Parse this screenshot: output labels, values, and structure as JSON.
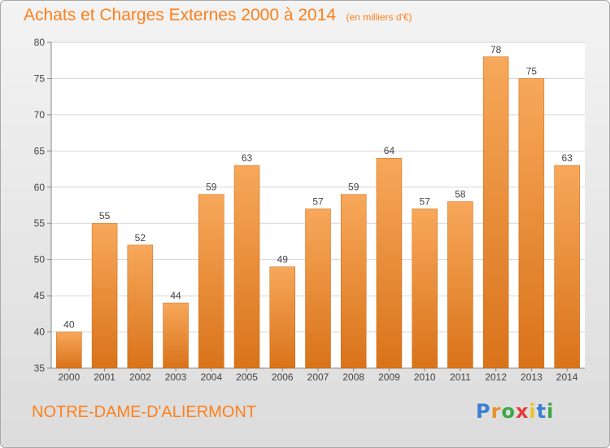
{
  "title": "Achats et Charges Externes 2000 à 2014",
  "subtitle": "(en milliers d'€)",
  "commune": "NOTRE-DAME-D'ALIERMONT",
  "logo": {
    "letters": [
      "P",
      "r",
      "o",
      "x",
      "i",
      "t",
      "i"
    ],
    "colors": [
      "#3b7fd1",
      "#e9902a",
      "#3ba84a",
      "#e23b3b",
      "#e9c42a",
      "#3b7fd1",
      "#3ba84a"
    ]
  },
  "colors": {
    "accent": "#ff7f1a",
    "bar_light": "#f7a85a",
    "bar_dark": "#d9731a"
  },
  "chart_data": {
    "type": "bar",
    "categories": [
      "2000",
      "2001",
      "2002",
      "2003",
      "2004",
      "2005",
      "2006",
      "2007",
      "2008",
      "2009",
      "2010",
      "2011",
      "2012",
      "2013",
      "2014"
    ],
    "values": [
      40,
      55,
      52,
      44,
      59,
      63,
      49,
      57,
      59,
      64,
      57,
      58,
      78,
      75,
      63
    ],
    "ylim": [
      35,
      80
    ],
    "yticks": [
      35,
      40,
      45,
      50,
      55,
      60,
      65,
      70,
      75,
      80
    ],
    "grid": true
  }
}
